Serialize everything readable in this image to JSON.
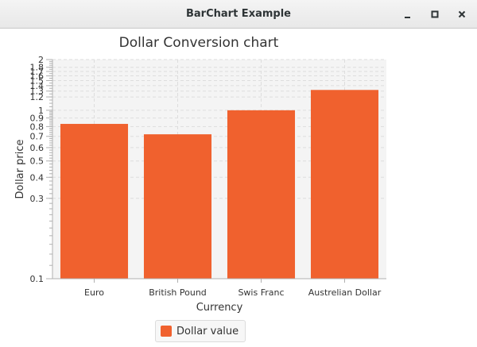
{
  "window": {
    "title": "BarChart Example",
    "controls": {
      "minimize_icon": "minimize-icon",
      "maximize_icon": "maximize-icon",
      "close_icon": "close-icon"
    }
  },
  "colors": {
    "bar": "#f0612e",
    "bar_dark": "#e4562a",
    "plot_bg": "#f4f4f4",
    "grid": "#dddddd",
    "axis": "#b0b0b0",
    "text": "#333333"
  },
  "chart_data": {
    "type": "bar",
    "title": "Dollar Conversion chart",
    "xlabel": "Currency",
    "ylabel": "Dollar price",
    "y_scale": "log",
    "ylim": [
      0.1,
      2
    ],
    "categories": [
      "Euro",
      "British Pound",
      "Swis Franc",
      "Austrelian Dollar"
    ],
    "series": [
      {
        "name": "Dollar value",
        "values": [
          0.83,
          0.72,
          1.0,
          1.32
        ]
      }
    ],
    "y_ticks": [
      0.1,
      0.3,
      0.4,
      0.5,
      0.6,
      0.7,
      0.8,
      0.9,
      1,
      1.2,
      1.3,
      1.4,
      1.5,
      1.6,
      1.7,
      1.8,
      2
    ],
    "y_tick_labels": [
      "0.1",
      "0.3",
      "0.4",
      "0.5",
      "0.6",
      "0.7",
      "0.8",
      "0.9",
      "1",
      "1.2",
      "1.3",
      "1.4",
      "1.5",
      "1.6",
      "1.7",
      "1.8",
      "2"
    ],
    "grid": true,
    "legend": "bottom"
  }
}
